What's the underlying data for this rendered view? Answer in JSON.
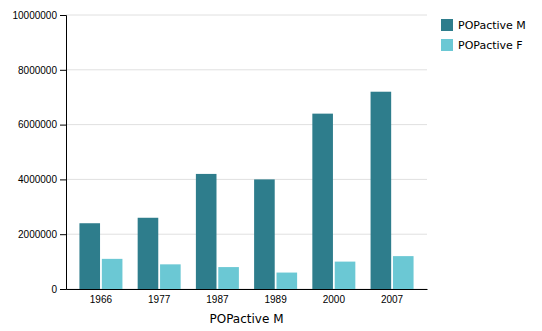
{
  "chart_data": {
    "type": "bar",
    "categories": [
      "1966",
      "1977",
      "1987",
      "1989",
      "2000",
      "2007"
    ],
    "series": [
      {
        "name": "POPactive M",
        "color": "#2e7d8c",
        "values": [
          2400000,
          2600000,
          4200000,
          4000000,
          6400000,
          7200000
        ]
      },
      {
        "name": "POPactive F",
        "color": "#6bc8d4",
        "values": [
          1100000,
          900000,
          800000,
          600000,
          1000000,
          1200000
        ]
      }
    ],
    "xlabel": "POPactive M",
    "ylim": [
      0,
      10000000
    ],
    "yticks": [
      0,
      2000000,
      4000000,
      6000000,
      8000000,
      10000000
    ],
    "grid": true,
    "legend": "right"
  }
}
